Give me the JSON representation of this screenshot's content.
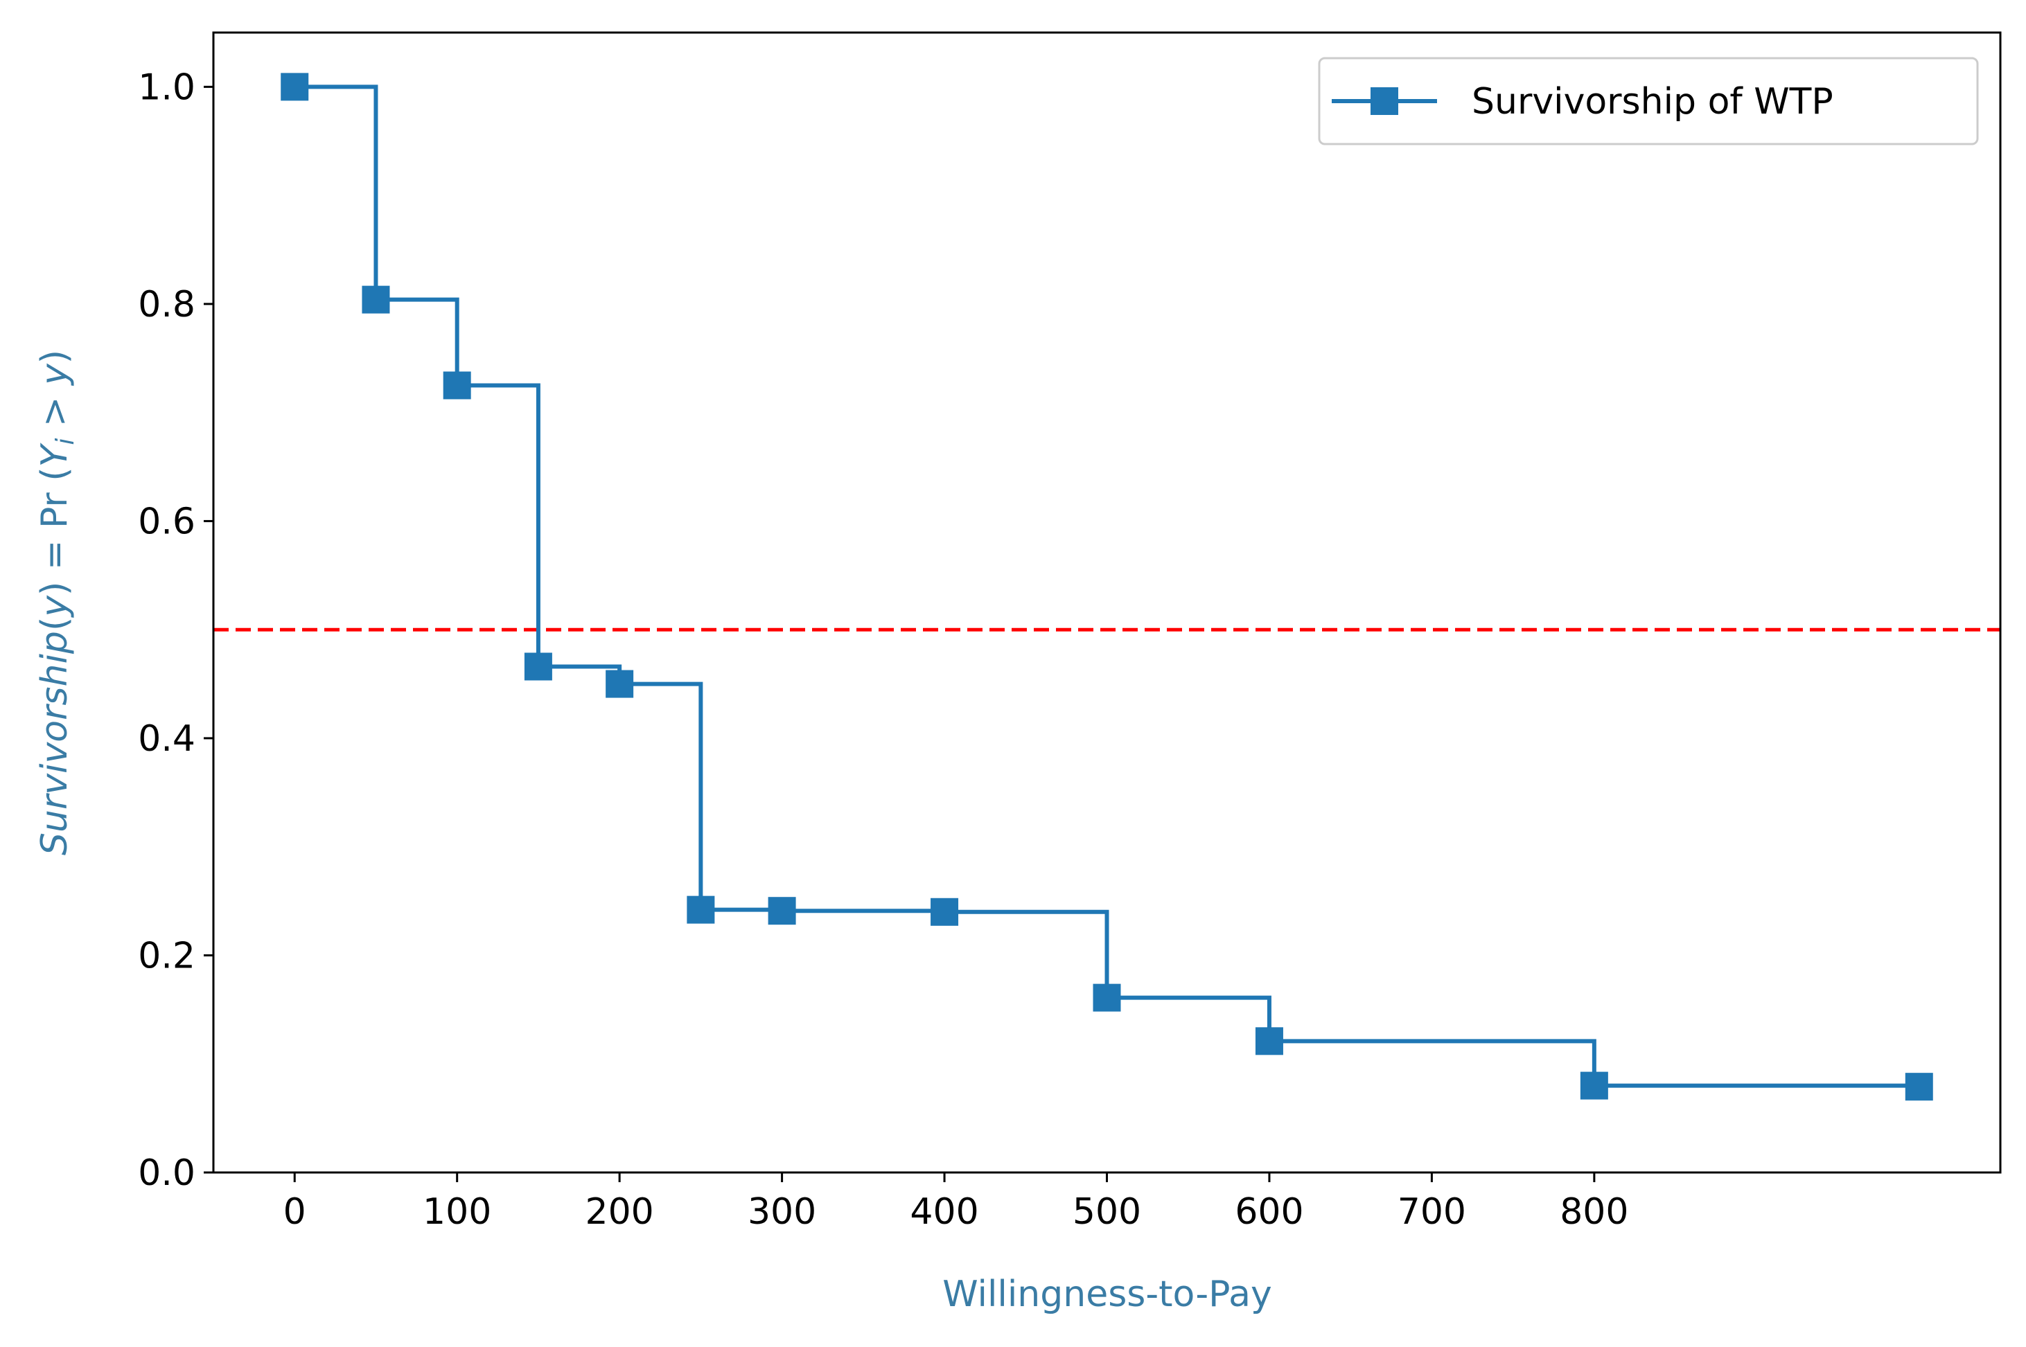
{
  "chart_data": {
    "type": "line",
    "step": "post",
    "xlabel": "Willingness-to-Pay",
    "ylabel_parts": {
      "italic1": "Survivorship",
      "plain1": "(",
      "italic2": "y",
      "plain2": ") = Pr (",
      "italic3": "Y",
      "sub": "i",
      "plain3": " > ",
      "italic4": "y",
      "plain4": ")"
    },
    "xlim": [
      -50,
      1050
    ],
    "ylim": [
      0,
      1.05
    ],
    "xticks": [
      0,
      100,
      200,
      300,
      400,
      500,
      600,
      700,
      800
    ],
    "xtick_labels": [
      "0",
      "100",
      "200",
      "300",
      "400",
      "500",
      "600",
      "700",
      "800"
    ],
    "yticks": [
      0.0,
      0.2,
      0.4,
      0.6,
      0.8,
      1.0
    ],
    "ytick_labels": [
      "0.0",
      "0.2",
      "0.4",
      "0.6",
      "0.8",
      "1.0"
    ],
    "grid": false,
    "legend_position": "top-right",
    "series": [
      {
        "name": "Survivorship of WTP",
        "color": "#1f77b4",
        "marker": "square",
        "x": [
          0,
          50,
          100,
          150,
          200,
          250,
          300,
          400,
          500,
          600,
          800,
          1000
        ],
        "y": [
          1.0,
          0.804,
          0.725,
          0.466,
          0.45,
          0.242,
          0.241,
          0.24,
          0.161,
          0.121,
          0.08,
          0.079
        ]
      }
    ],
    "reference_lines": [
      {
        "orientation": "horizontal",
        "y": 0.5,
        "color": "#ff0000",
        "style": "dashed"
      }
    ],
    "label_color": "#3a7ca5"
  }
}
